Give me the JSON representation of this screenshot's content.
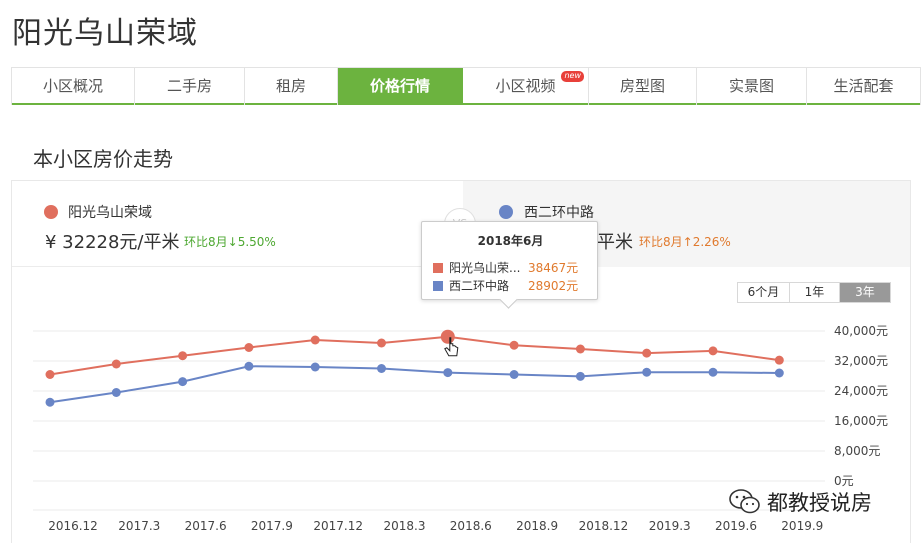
{
  "page": {
    "title": "阳光乌山荣域"
  },
  "tabs": [
    {
      "label": "小区概况",
      "active": false
    },
    {
      "label": "二手房",
      "active": false
    },
    {
      "label": "租房",
      "active": false
    },
    {
      "label": "价格行情",
      "active": true
    },
    {
      "label": "小区视频",
      "active": false,
      "badge": "new"
    },
    {
      "label": "房型图",
      "active": false
    },
    {
      "label": "实景图",
      "active": false
    },
    {
      "label": "生活配套",
      "active": false
    }
  ],
  "section": {
    "title": "本小区房价走势"
  },
  "legend": {
    "left": {
      "name": "阳光乌山荣域",
      "price": "¥ 32228元/平米",
      "change": "环比8月↓5.50%",
      "color": "#e06f5e",
      "change_color": "#4ea832"
    },
    "right": {
      "name": "西二环中路",
      "price_tail": "平米",
      "change": "环比8月↑2.26%",
      "color": "#6985c6",
      "change_color": "#e07a2e"
    },
    "vs": "VS"
  },
  "range": {
    "options": [
      "6个月",
      "1年",
      "3年"
    ],
    "selected": "3年"
  },
  "tooltip": {
    "title": "2018年6月",
    "rows": [
      {
        "name": "阳光乌山荣...",
        "value": "38467元",
        "color": "#e06f5e"
      },
      {
        "name": "西二环中路",
        "value": "28902元",
        "color": "#6985c6"
      }
    ]
  },
  "chart_data": {
    "type": "line",
    "x": [
      "2016.12",
      "2017.3",
      "2017.6",
      "2017.9",
      "2017.12",
      "2018.3",
      "2018.6",
      "2018.9",
      "2018.12",
      "2019.3",
      "2019.6",
      "2019.9"
    ],
    "series": [
      {
        "name": "阳光乌山荣域",
        "color": "#e06f5e",
        "values": [
          28400,
          31200,
          33400,
          35600,
          37600,
          36800,
          38467,
          36200,
          35200,
          34100,
          34700,
          32228
        ]
      },
      {
        "name": "西二环中路",
        "color": "#6985c6",
        "values": [
          21000,
          23600,
          26500,
          30600,
          30400,
          30000,
          28902,
          28400,
          27900,
          29000,
          29000,
          28800
        ]
      }
    ],
    "y_ticks": [
      "40,000元",
      "32,000元",
      "24,000元",
      "16,000元",
      "8,000元",
      "0元"
    ],
    "ylim": [
      0,
      40000
    ],
    "grid": true,
    "highlight_index": 6
  },
  "watermark": {
    "text": "都教授说房",
    "icon": "wechat-icon"
  }
}
